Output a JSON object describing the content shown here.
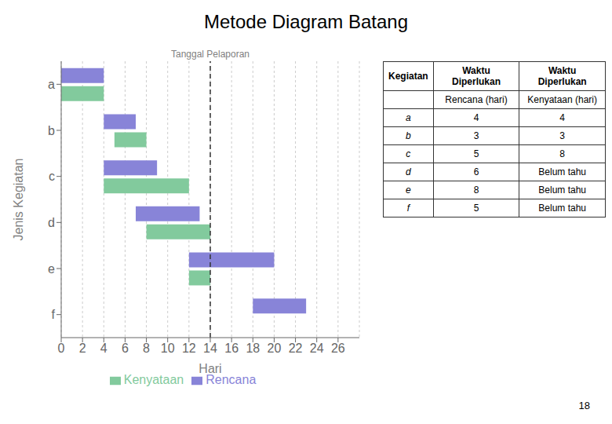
{
  "chart_data": {
    "type": "bar",
    "orientation": "horizontal",
    "title": "Metode Diagram Batang",
    "xlabel": "Hari",
    "ylabel": "Jenis Kegiatan",
    "categories": [
      "a",
      "b",
      "c",
      "d",
      "e",
      "f"
    ],
    "series": [
      {
        "name": "Rencana",
        "color": "#8884d8",
        "starts": [
          0,
          4,
          4,
          7,
          12,
          18
        ],
        "values": [
          4,
          3,
          5,
          6,
          8,
          5
        ]
      },
      {
        "name": "Kenyataan",
        "color": "#82ca9d",
        "starts": [
          0,
          5,
          4,
          8,
          12,
          null
        ],
        "values": [
          4,
          3,
          8,
          6,
          2,
          null
        ]
      }
    ],
    "xlim": [
      0,
      28
    ],
    "xticks": [
      0,
      2,
      4,
      6,
      8,
      10,
      12,
      14,
      16,
      18,
      20,
      22,
      24,
      26
    ],
    "legend": "bottom",
    "annotations": [
      {
        "x": 14,
        "text": "Tanggal Pelaporan",
        "line_style": "dashed"
      },
      {
        "text": "18"
      }
    ],
    "table": {
      "header": [
        "Kegiatan",
        "Waktu Diperlukan",
        "Waktu Diperlukan"
      ],
      "subheader": [
        null,
        "Rencana (hari)",
        "Kenyataan (hari)"
      ],
      "rows": [
        [
          "a",
          4,
          4
        ],
        [
          "b",
          3,
          3
        ],
        [
          "c",
          5,
          8
        ],
        [
          "d",
          6,
          "Belum tahu"
        ],
        [
          "e",
          8,
          "Belum tahu"
        ],
        [
          "f",
          5,
          "Belum tahu"
        ]
      ]
    }
  }
}
